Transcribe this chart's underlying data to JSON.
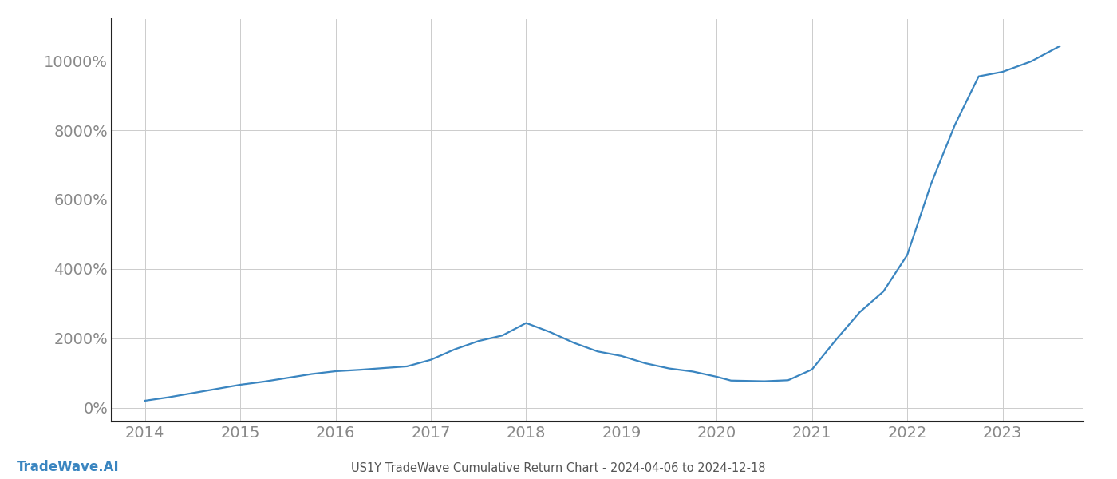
{
  "title": "US1Y TradeWave Cumulative Return Chart - 2024-04-06 to 2024-12-18",
  "watermark": "TradeWave.AI",
  "line_color": "#3a85c0",
  "background_color": "#ffffff",
  "grid_color": "#cccccc",
  "x_values": [
    2014.0,
    2014.25,
    2014.5,
    2014.75,
    2015.0,
    2015.25,
    2015.5,
    2015.75,
    2016.0,
    2016.25,
    2016.5,
    2016.75,
    2017.0,
    2017.25,
    2017.5,
    2017.75,
    2018.0,
    2018.25,
    2018.5,
    2018.75,
    2019.0,
    2019.25,
    2019.5,
    2019.75,
    2020.0,
    2020.15,
    2020.5,
    2020.75,
    2021.0,
    2021.25,
    2021.5,
    2021.75,
    2022.0,
    2022.25,
    2022.5,
    2022.75,
    2023.0,
    2023.3,
    2023.6
  ],
  "y_values": [
    200,
    300,
    420,
    540,
    660,
    750,
    860,
    970,
    1050,
    1090,
    1140,
    1190,
    1380,
    1680,
    1920,
    2080,
    2440,
    2180,
    1870,
    1620,
    1490,
    1280,
    1130,
    1040,
    890,
    780,
    760,
    790,
    1100,
    1950,
    2750,
    3350,
    4400,
    6450,
    8150,
    9550,
    9680,
    9980,
    10420
  ],
  "x_ticks": [
    2014,
    2015,
    2016,
    2017,
    2018,
    2019,
    2020,
    2021,
    2022,
    2023
  ],
  "y_ticks": [
    0,
    2000,
    4000,
    6000,
    8000,
    10000
  ],
  "xlim": [
    2013.65,
    2023.85
  ],
  "ylim": [
    -400,
    11200
  ],
  "line_width": 1.6,
  "title_fontsize": 10.5,
  "tick_fontsize": 14,
  "watermark_fontsize": 12,
  "watermark_color": "#3a85c0",
  "title_color": "#555555",
  "tick_color": "#888888",
  "spine_color": "#222222"
}
